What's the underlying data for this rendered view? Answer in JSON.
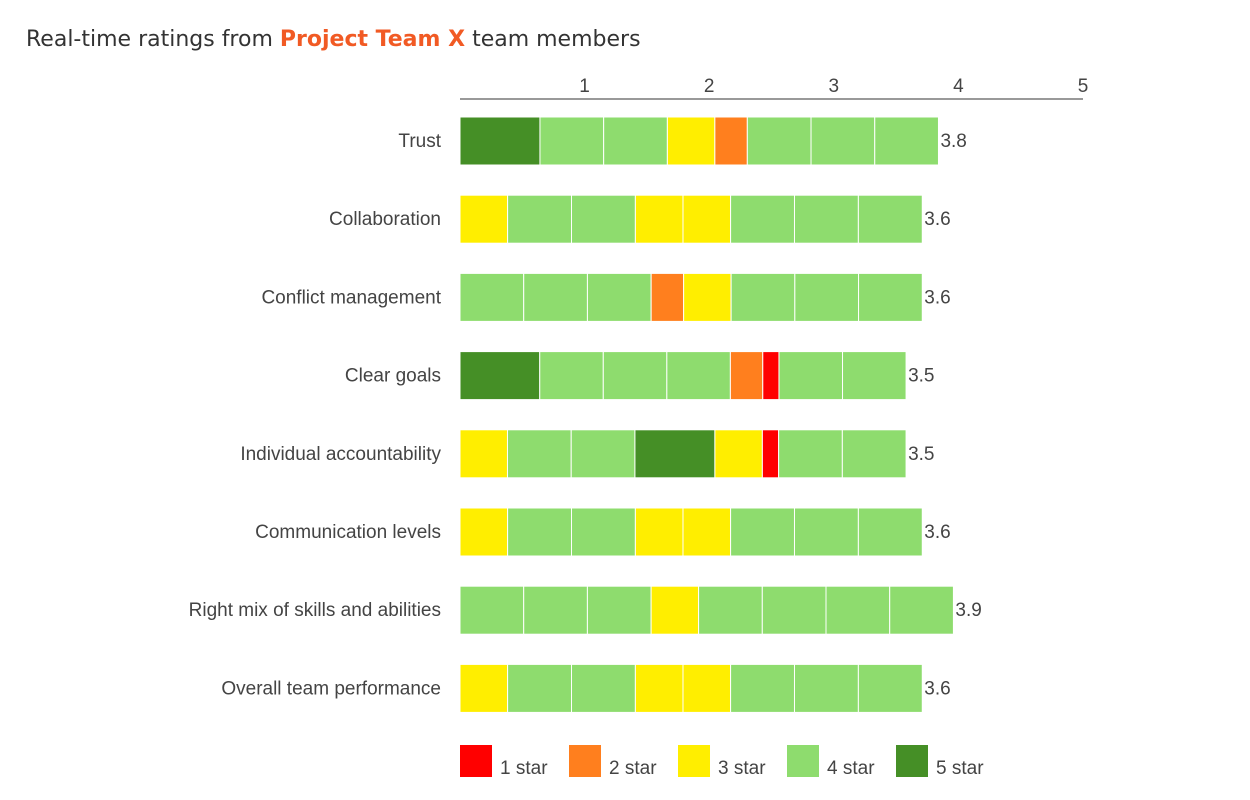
{
  "title": {
    "prefix": "Real-time ratings from",
    "highlight": "Project Team X",
    "suffix": "team members",
    "highlight_color": "#f15a24"
  },
  "chart_data": {
    "type": "bar",
    "orientation": "horizontal",
    "stacked": true,
    "x_axis": {
      "position": "top",
      "range": [
        0,
        5
      ],
      "ticks": [
        "1",
        "2",
        "3",
        "4",
        "5"
      ]
    },
    "grid": false,
    "legend_placement": "bottom",
    "colors": {
      "1": "#ff0000",
      "2": "#ff7f1e",
      "3": "#ffee00",
      "4": "#8edc6e",
      "5": "#458f26"
    },
    "legend": [
      {
        "star": 1,
        "label": "1 star"
      },
      {
        "star": 2,
        "label": "2 star"
      },
      {
        "star": 3,
        "label": "3 star"
      },
      {
        "star": 4,
        "label": "4 star"
      },
      {
        "star": 5,
        "label": "5 star"
      }
    ],
    "categories": [
      {
        "label": "Trust",
        "score": "3.8",
        "total": 3.84,
        "segments": [
          {
            "star": 5,
            "value": 0.64
          },
          {
            "star": 4,
            "value": 0.51
          },
          {
            "star": 4,
            "value": 0.51
          },
          {
            "star": 3,
            "value": 0.38
          },
          {
            "star": 2,
            "value": 0.26
          },
          {
            "star": 4,
            "value": 0.51
          },
          {
            "star": 4,
            "value": 0.51
          },
          {
            "star": 4,
            "value": 0.51
          }
        ]
      },
      {
        "label": "Collaboration",
        "score": "3.6",
        "total": 3.71,
        "segments": [
          {
            "star": 3,
            "value": 0.38
          },
          {
            "star": 4,
            "value": 0.51
          },
          {
            "star": 4,
            "value": 0.51
          },
          {
            "star": 3,
            "value": 0.38
          },
          {
            "star": 3,
            "value": 0.38
          },
          {
            "star": 4,
            "value": 0.51
          },
          {
            "star": 4,
            "value": 0.51
          },
          {
            "star": 4,
            "value": 0.51
          }
        ]
      },
      {
        "label": "Conflict management",
        "score": "3.6",
        "total": 3.71,
        "segments": [
          {
            "star": 4,
            "value": 0.51
          },
          {
            "star": 4,
            "value": 0.51
          },
          {
            "star": 4,
            "value": 0.51
          },
          {
            "star": 2,
            "value": 0.26
          },
          {
            "star": 3,
            "value": 0.38
          },
          {
            "star": 4,
            "value": 0.51
          },
          {
            "star": 4,
            "value": 0.51
          },
          {
            "star": 4,
            "value": 0.51
          }
        ]
      },
      {
        "label": "Clear goals",
        "score": "3.5",
        "total": 3.58,
        "segments": [
          {
            "star": 5,
            "value": 0.64
          },
          {
            "star": 4,
            "value": 0.51
          },
          {
            "star": 4,
            "value": 0.51
          },
          {
            "star": 4,
            "value": 0.51
          },
          {
            "star": 2,
            "value": 0.26
          },
          {
            "star": 1,
            "value": 0.13
          },
          {
            "star": 4,
            "value": 0.51
          },
          {
            "star": 4,
            "value": 0.51
          }
        ]
      },
      {
        "label": "Individual accountability",
        "score": "3.5",
        "total": 3.58,
        "segments": [
          {
            "star": 3,
            "value": 0.38
          },
          {
            "star": 4,
            "value": 0.51
          },
          {
            "star": 4,
            "value": 0.51
          },
          {
            "star": 5,
            "value": 0.64
          },
          {
            "star": 3,
            "value": 0.38
          },
          {
            "star": 1,
            "value": 0.13
          },
          {
            "star": 4,
            "value": 0.51
          },
          {
            "star": 4,
            "value": 0.51
          }
        ]
      },
      {
        "label": "Communication levels",
        "score": "3.6",
        "total": 3.71,
        "segments": [
          {
            "star": 3,
            "value": 0.38
          },
          {
            "star": 4,
            "value": 0.51
          },
          {
            "star": 4,
            "value": 0.51
          },
          {
            "star": 3,
            "value": 0.38
          },
          {
            "star": 3,
            "value": 0.38
          },
          {
            "star": 4,
            "value": 0.51
          },
          {
            "star": 4,
            "value": 0.51
          },
          {
            "star": 4,
            "value": 0.51
          }
        ]
      },
      {
        "label": "Right mix of skills and abilities",
        "score": "3.9",
        "total": 3.96,
        "segments": [
          {
            "star": 4,
            "value": 0.51
          },
          {
            "star": 4,
            "value": 0.51
          },
          {
            "star": 4,
            "value": 0.51
          },
          {
            "star": 3,
            "value": 0.38
          },
          {
            "star": 4,
            "value": 0.51
          },
          {
            "star": 4,
            "value": 0.51
          },
          {
            "star": 4,
            "value": 0.51
          },
          {
            "star": 4,
            "value": 0.51
          }
        ]
      },
      {
        "label": "Overall team performance",
        "score": "3.6",
        "total": 3.71,
        "segments": [
          {
            "star": 3,
            "value": 0.38
          },
          {
            "star": 4,
            "value": 0.51
          },
          {
            "star": 4,
            "value": 0.51
          },
          {
            "star": 3,
            "value": 0.38
          },
          {
            "star": 3,
            "value": 0.38
          },
          {
            "star": 4,
            "value": 0.51
          },
          {
            "star": 4,
            "value": 0.51
          },
          {
            "star": 4,
            "value": 0.51
          }
        ]
      }
    ]
  }
}
